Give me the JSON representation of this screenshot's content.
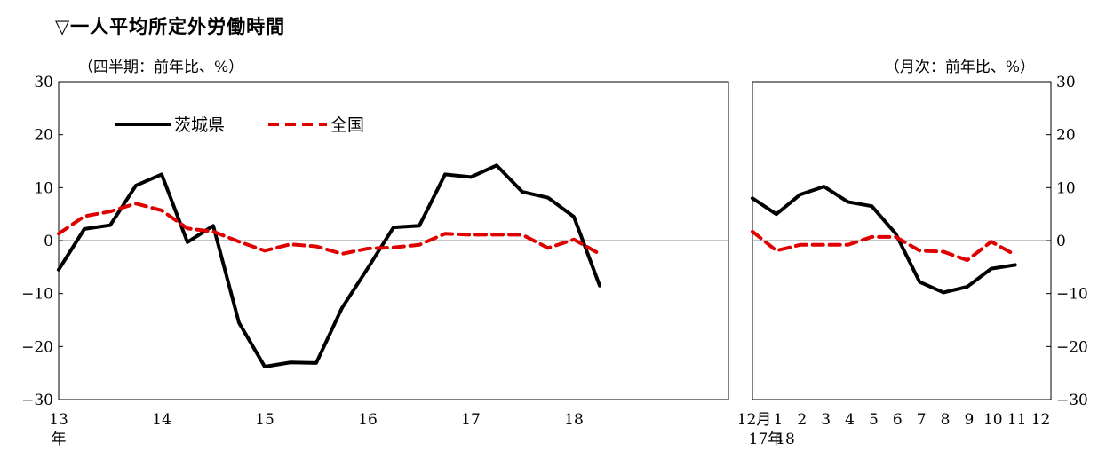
{
  "page_title": "▽一人平均所定外労働時間",
  "colors": {
    "ibaraki": "#000000",
    "national": "#e00000",
    "zero_line": "#888888",
    "frame": "#000000"
  },
  "chart_data": [
    {
      "type": "line",
      "subtitle": "（四半期：前年比、%）",
      "ylim": [
        -30,
        30
      ],
      "yticks": [
        30,
        20,
        10,
        0,
        -10,
        -20,
        -30
      ],
      "xlim": [
        0,
        26
      ],
      "xticks": [
        {
          "x": 0,
          "label": "13"
        },
        {
          "x": 4,
          "label": "14"
        },
        {
          "x": 8,
          "label": "15"
        },
        {
          "x": 12,
          "label": "16"
        },
        {
          "x": 16,
          "label": "17"
        },
        {
          "x": 20,
          "label": "18"
        }
      ],
      "x_unit_label": "年",
      "legend_position": "top-left",
      "series": [
        {
          "name": "茨城県",
          "style": "solid",
          "values": [
            -5.5,
            2.2,
            2.9,
            10.4,
            12.5,
            -0.3,
            2.8,
            -15.5,
            -23.8,
            -23.0,
            -23.1,
            -12.7,
            -5.2,
            2.5,
            2.8,
            12.5,
            12.0,
            14.2,
            9.2,
            8.1,
            4.5,
            -8.5
          ]
        },
        {
          "name": "全国",
          "style": "dashed",
          "values": [
            1.3,
            4.6,
            5.5,
            7.0,
            5.7,
            2.3,
            1.7,
            -0.2,
            -1.9,
            -0.7,
            -1.1,
            -2.5,
            -1.5,
            -1.3,
            -0.8,
            1.3,
            1.1,
            1.1,
            1.1,
            -1.4,
            0.2,
            -2.5
          ]
        }
      ]
    },
    {
      "type": "line",
      "subtitle": "（月次：前年比、%）",
      "ylim": [
        -30,
        30
      ],
      "yticks": [
        30,
        20,
        10,
        0,
        -10,
        -20,
        -30
      ],
      "xlim": [
        0,
        12.5
      ],
      "xticks": [
        {
          "x": 0,
          "label": "12月"
        },
        {
          "x": 1,
          "label": "1"
        },
        {
          "x": 2,
          "label": "2"
        },
        {
          "x": 3,
          "label": "3"
        },
        {
          "x": 4,
          "label": "4"
        },
        {
          "x": 5,
          "label": "5"
        },
        {
          "x": 6,
          "label": "6"
        },
        {
          "x": 7,
          "label": "7"
        },
        {
          "x": 8,
          "label": "8"
        },
        {
          "x": 9,
          "label": "9"
        },
        {
          "x": 10,
          "label": "10"
        },
        {
          "x": 11,
          "label": "11"
        },
        {
          "x": 12,
          "label": "12"
        }
      ],
      "year_labels": [
        "17年",
        "18"
      ],
      "series": [
        {
          "name": "茨城県",
          "style": "solid",
          "values": [
            8.0,
            5.0,
            8.7,
            10.2,
            7.3,
            6.5,
            1.3,
            -7.8,
            -9.8,
            -8.7,
            -5.3,
            -4.6
          ]
        },
        {
          "name": "全国",
          "style": "dashed",
          "values": [
            1.7,
            -1.9,
            -0.8,
            -0.8,
            -0.8,
            0.7,
            0.7,
            -1.9,
            -2.1,
            -3.7,
            -0.2,
            -2.7
          ]
        }
      ]
    }
  ]
}
